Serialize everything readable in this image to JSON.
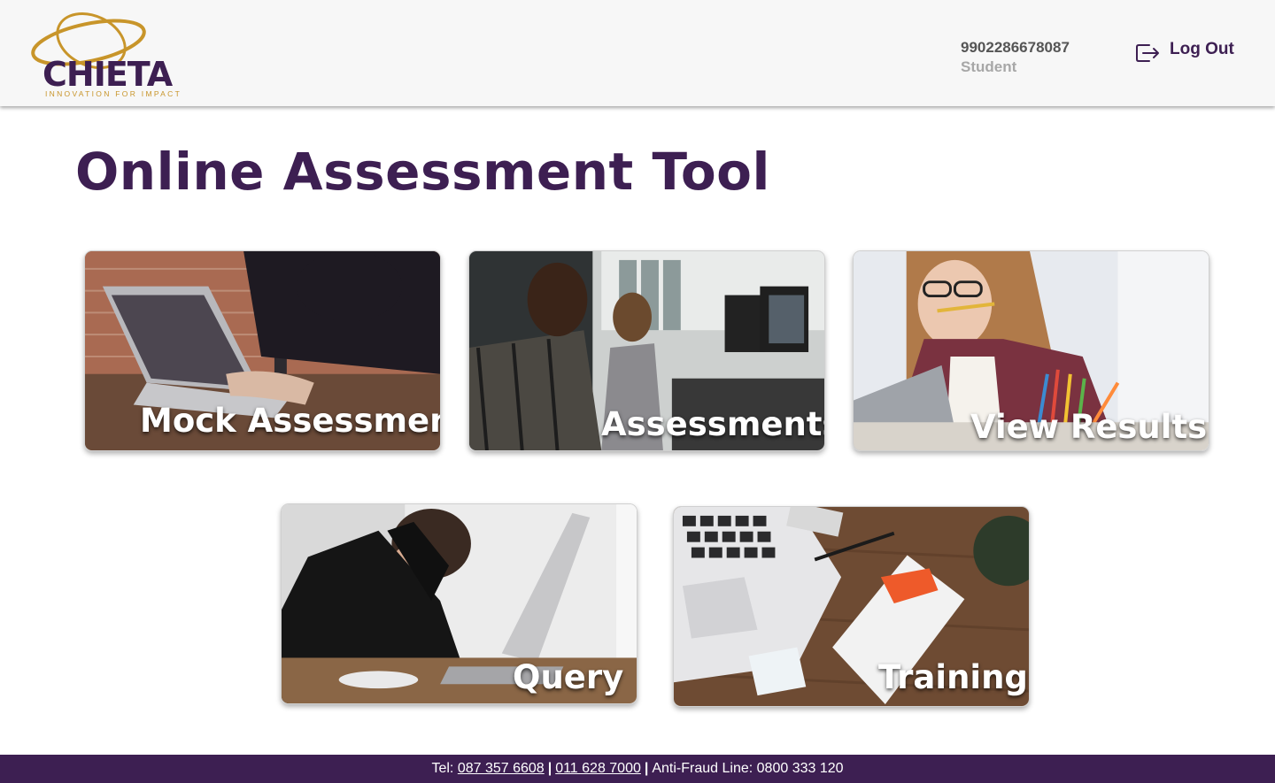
{
  "header": {
    "logo_text": "CHIETA",
    "logo_tagline": "INNOVATION FOR IMPACT",
    "user_id": "9902286678087",
    "user_role": "Student",
    "logout_label": "Log Out",
    "logout_icon": "logout-icon"
  },
  "main": {
    "title": "Online Assessment Tool",
    "cards": [
      {
        "label": "Mock Assessment",
        "image": "person-typing-on-laptop"
      },
      {
        "label": "Assessments",
        "image": "students-at-computers"
      },
      {
        "label": "View Results",
        "image": "student-biting-pencil"
      },
      {
        "label": "Query",
        "image": "stressed-student-at-laptop"
      },
      {
        "label": "Training",
        "image": "laptop-and-book-on-desk"
      }
    ]
  },
  "footer": {
    "tel_label": "Tel:",
    "phone_1": "087 357 6608",
    "phone_2": "011 628 7000",
    "antifraud_label": "Anti-Fraud Line:",
    "antifraud_number": "0800 333 120"
  },
  "colors": {
    "brand_purple": "#3d1f52",
    "brand_gold": "#c8952a",
    "header_bg": "#f7f7f7"
  }
}
